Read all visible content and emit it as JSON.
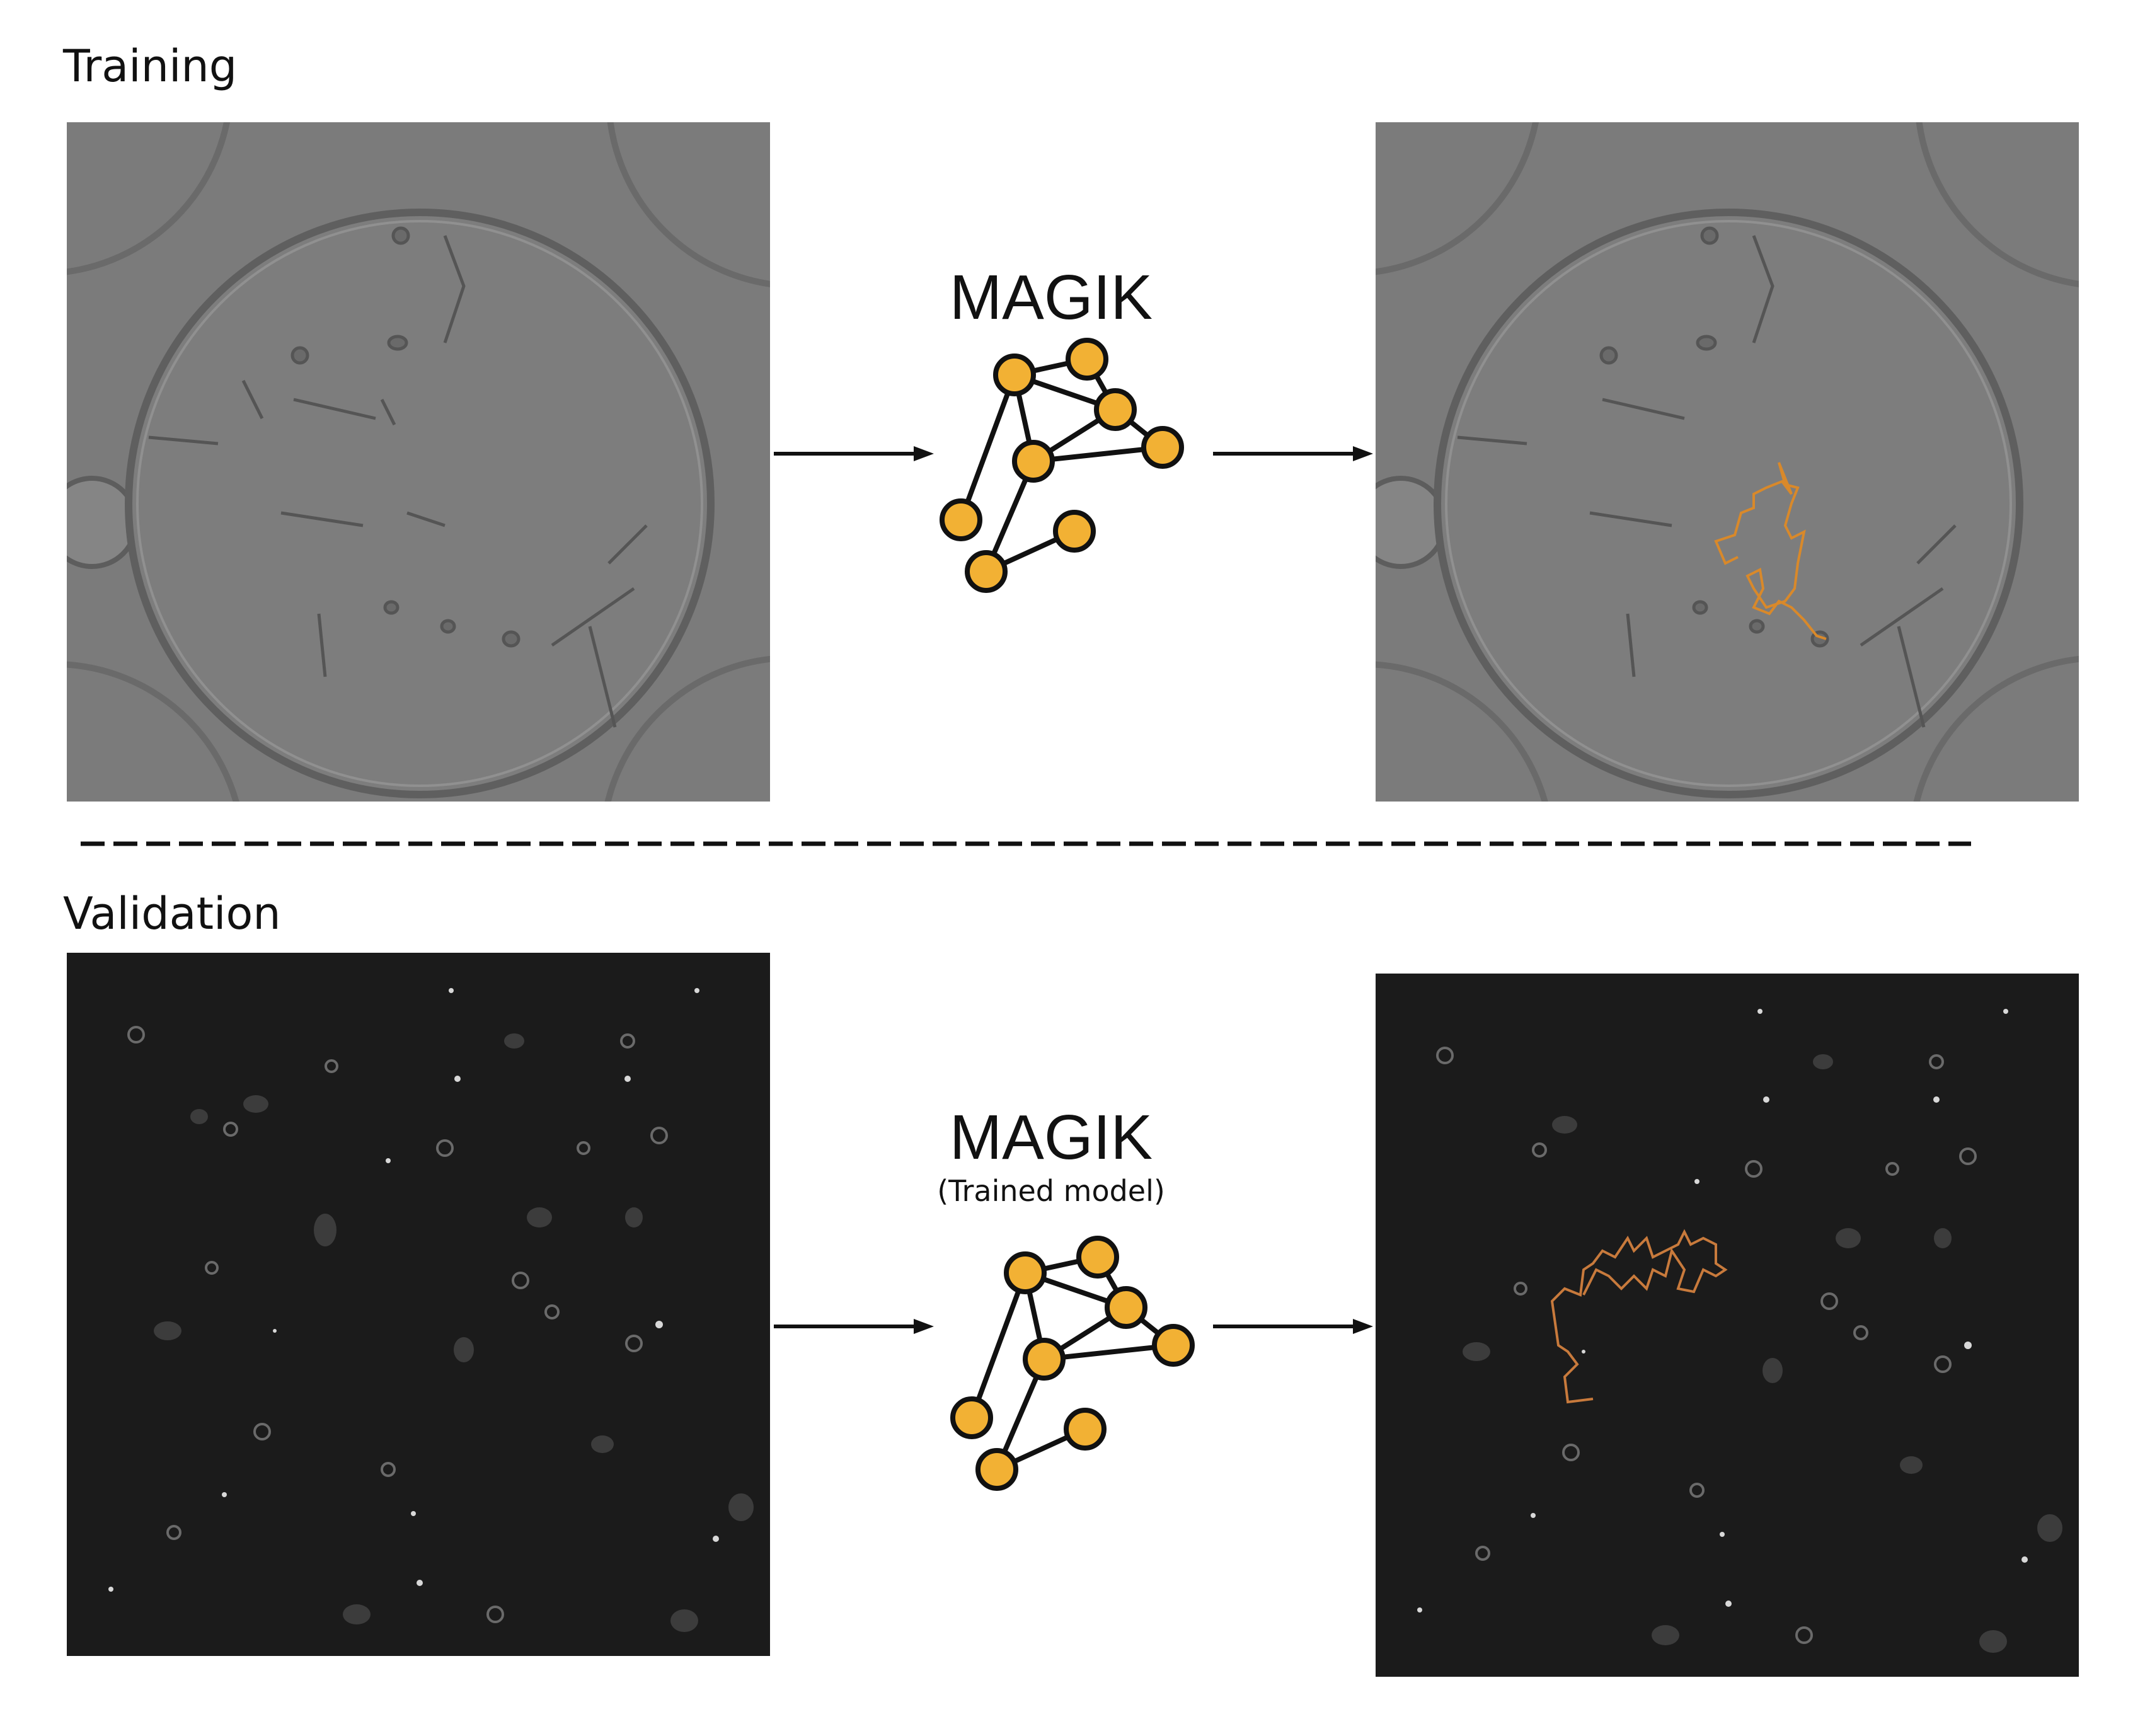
{
  "sections": {
    "training": {
      "label": "Training",
      "model_name": "MAGIK",
      "model_subtitle": ""
    },
    "validation": {
      "label": "Validation",
      "model_name": "MAGIK",
      "model_subtitle": "(Trained model)"
    }
  },
  "colors": {
    "node_fill": "#f2b134",
    "node_stroke": "#111111",
    "trajectory_training": "#d9892a",
    "trajectory_validation": "#c87a3c",
    "training_background": "#7a7a7a",
    "validation_background": "#1b1b1b"
  },
  "icons": {
    "arrow": "right-arrow-icon",
    "graph": "graph-network-icon"
  }
}
